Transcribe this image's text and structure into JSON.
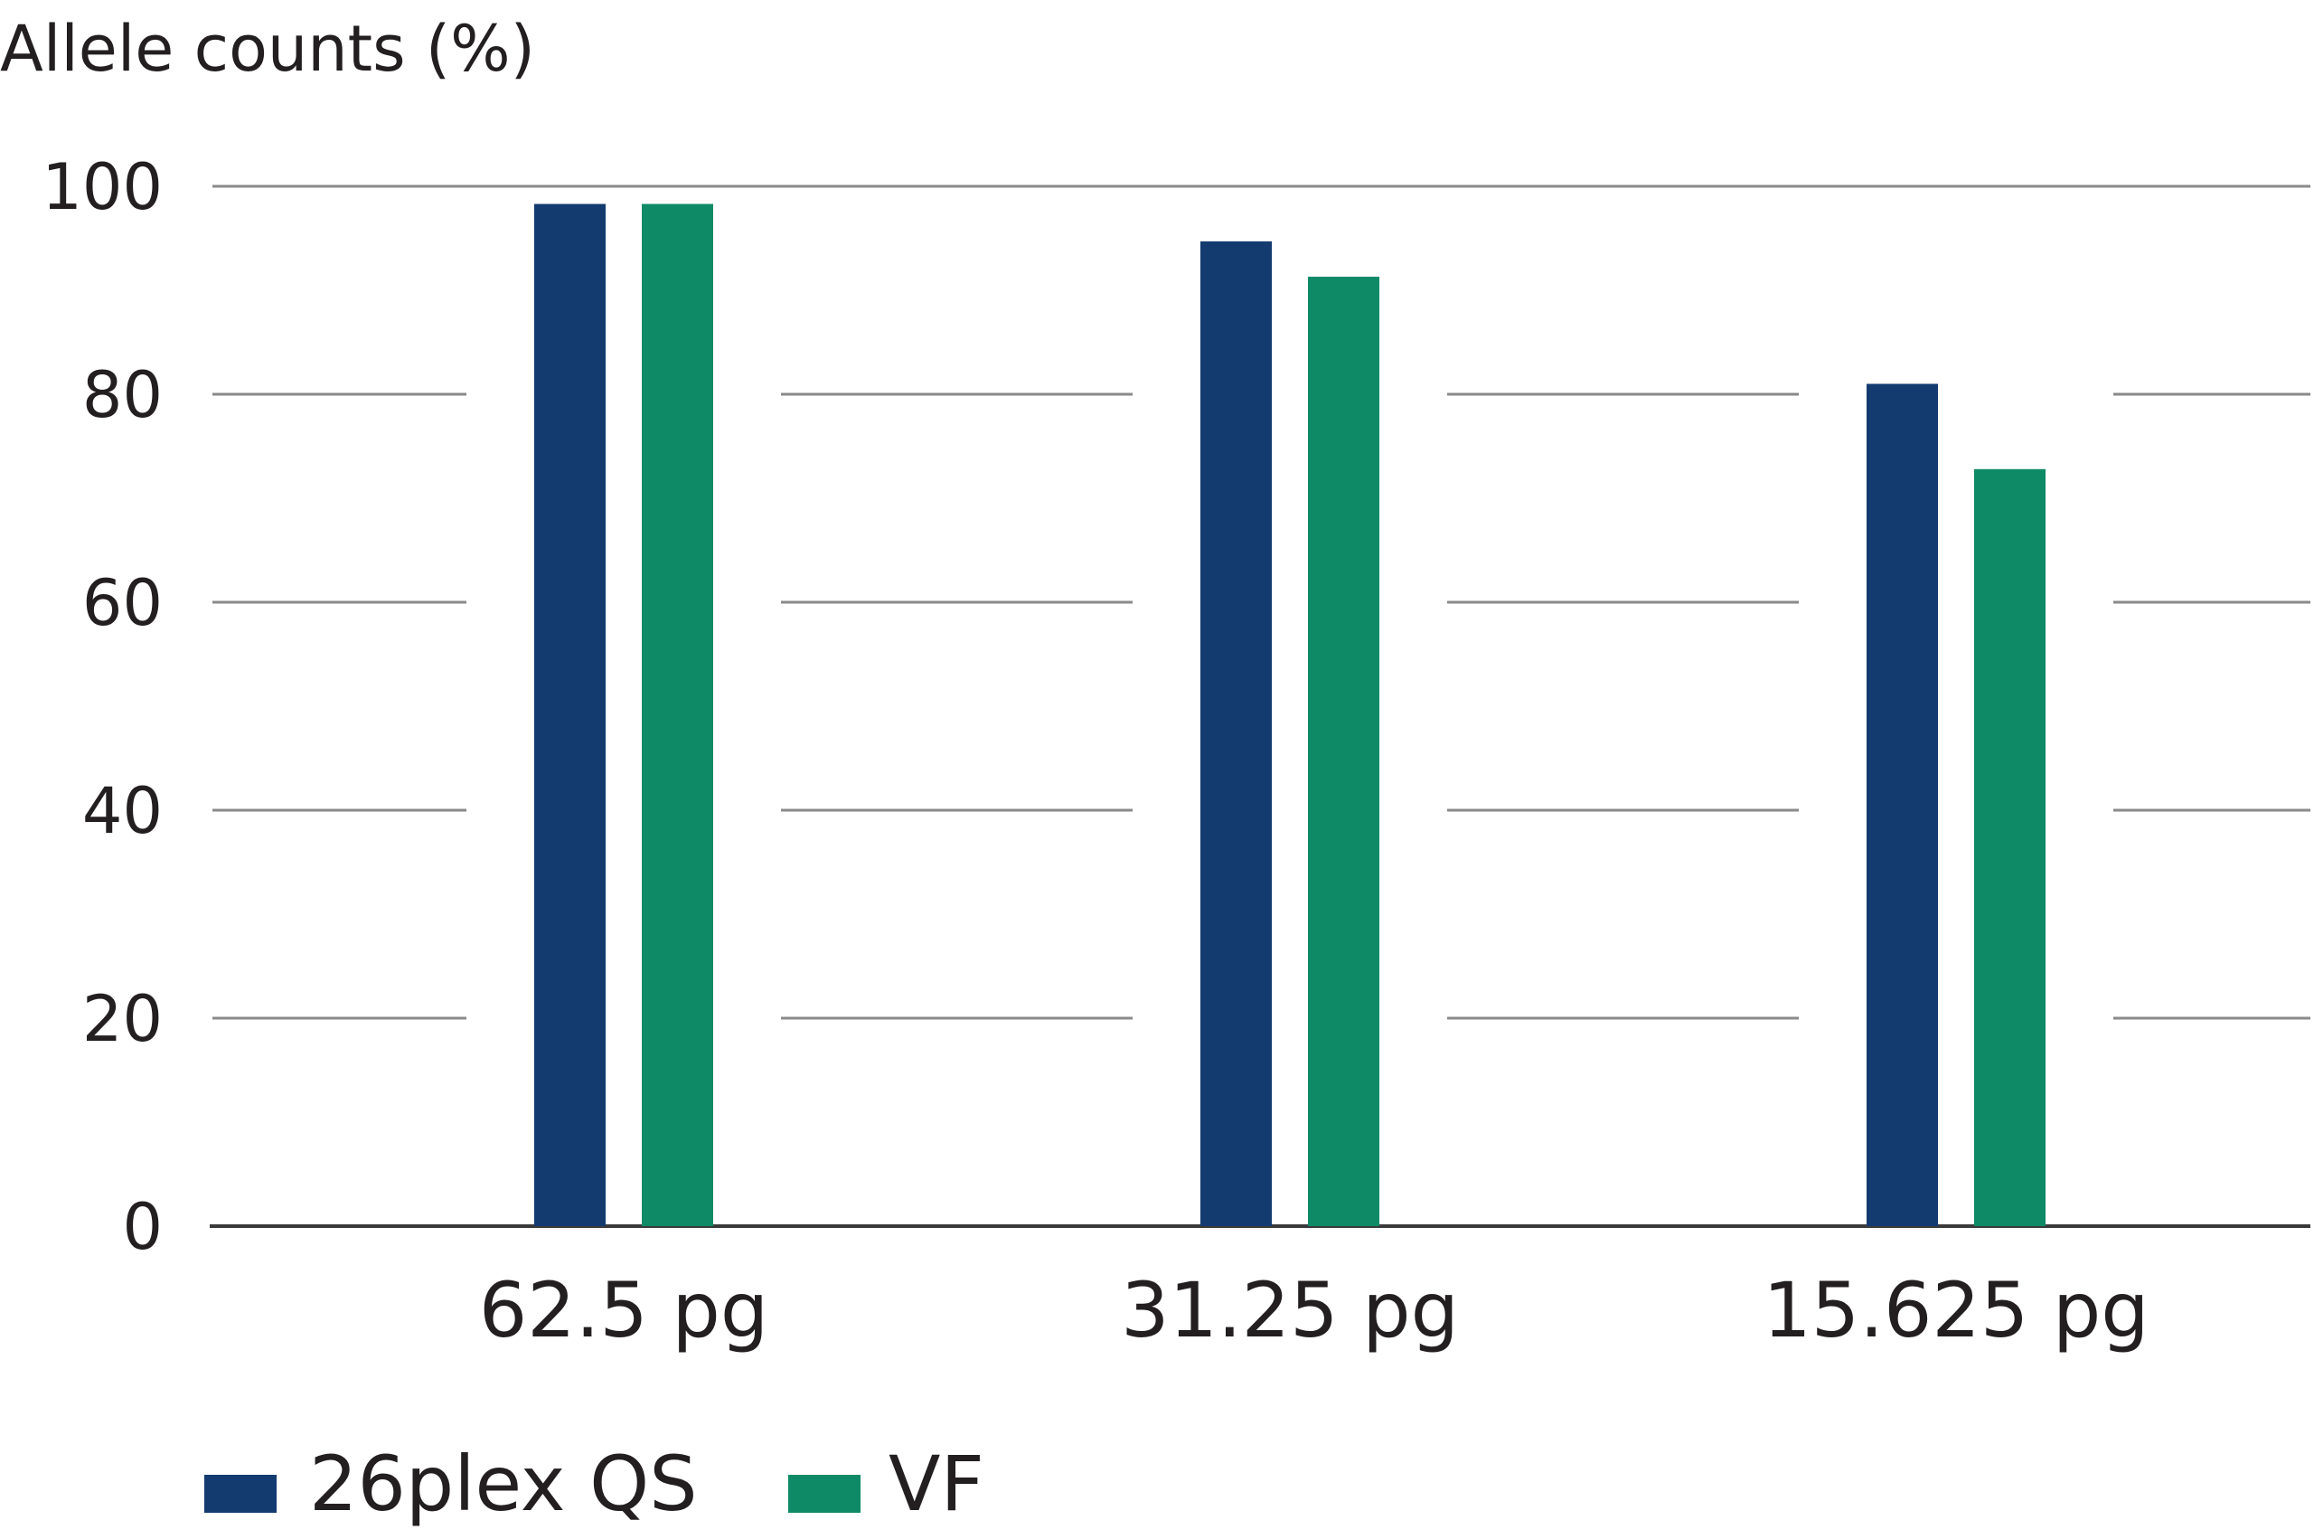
{
  "chart_data": {
    "type": "bar",
    "title": "",
    "ylabel": "Allele counts (%)",
    "xlabel": "",
    "categories": [
      "62.5 pg",
      "31.25 pg",
      "15.625 pg"
    ],
    "series": [
      {
        "name": "26plex QS",
        "values": [
          98.3,
          94.7,
          81.0
        ]
      },
      {
        "name": "VF",
        "values": [
          98.3,
          91.3,
          72.8
        ]
      }
    ],
    "ylim": [
      0,
      100
    ],
    "yticks": [
      0,
      20,
      40,
      60,
      80,
      100
    ],
    "grid": true,
    "legend": "bottom-left",
    "colors": [
      "#133b70",
      "#0e8a66"
    ]
  }
}
